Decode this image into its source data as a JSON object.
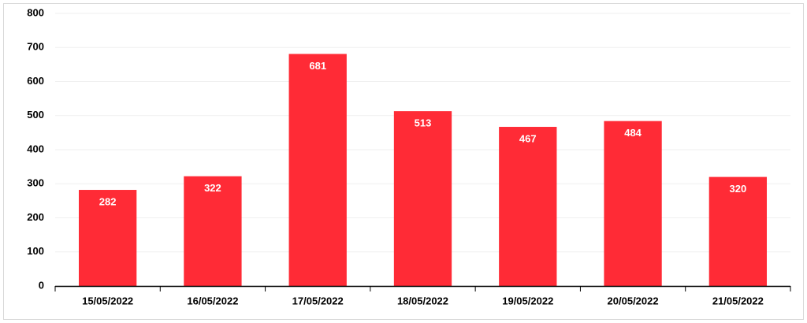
{
  "chart_data": {
    "type": "bar",
    "categories": [
      "15/05/2022",
      "16/05/2022",
      "17/05/2022",
      "18/05/2022",
      "19/05/2022",
      "20/05/2022",
      "21/05/2022"
    ],
    "values": [
      282,
      322,
      681,
      513,
      467,
      484,
      320
    ],
    "color": "#ff2b36",
    "ylim": [
      0,
      800
    ],
    "yticks": [
      0,
      100,
      200,
      300,
      400,
      500,
      600,
      700,
      800
    ],
    "grid": true
  }
}
